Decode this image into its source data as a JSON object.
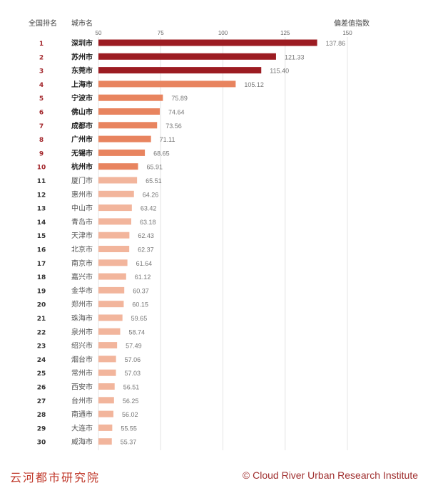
{
  "chart_data": {
    "type": "bar",
    "orientation": "horizontal",
    "rank_header": "全国排名",
    "city_header": "城市名",
    "value_header": "偏差值指数",
    "xlim": [
      50,
      150
    ],
    "xticks": [
      50,
      75,
      100,
      125,
      150
    ],
    "grid": true,
    "colors": {
      "top3": "#9c1c22",
      "top10": "#e8845f",
      "rest": "#f2b59c",
      "rank_top10": "#a3272c"
    },
    "ranks": [
      1,
      2,
      3,
      4,
      5,
      6,
      7,
      8,
      9,
      10,
      11,
      12,
      13,
      14,
      15,
      16,
      17,
      18,
      19,
      20,
      21,
      22,
      23,
      24,
      25,
      26,
      27,
      28,
      29,
      30
    ],
    "categories": [
      "深圳市",
      "苏州市",
      "东莞市",
      "上海市",
      "宁波市",
      "佛山市",
      "成都市",
      "广州市",
      "无锡市",
      "杭州市",
      "厦门市",
      "惠州市",
      "中山市",
      "青岛市",
      "天津市",
      "北京市",
      "南京市",
      "嘉兴市",
      "金华市",
      "郑州市",
      "珠海市",
      "泉州市",
      "绍兴市",
      "烟台市",
      "常州市",
      "西安市",
      "台州市",
      "南通市",
      "大连市",
      "威海市"
    ],
    "values": [
      137.86,
      121.33,
      115.4,
      105.12,
      75.89,
      74.64,
      73.56,
      71.11,
      68.65,
      65.91,
      65.51,
      64.26,
      63.42,
      63.18,
      62.43,
      62.37,
      61.64,
      61.12,
      60.37,
      60.15,
      59.65,
      58.74,
      57.49,
      57.06,
      57.03,
      56.51,
      56.25,
      56.02,
      55.55,
      55.37
    ],
    "value_labels": [
      "137.86",
      "121.33",
      "115.40",
      "105.12",
      "75.89",
      "74.64",
      "73.56",
      "71.11",
      "68.65",
      "65.91",
      "65.51",
      "64.26",
      "63.42",
      "63.18",
      "62.43",
      "62.37",
      "61.64",
      "61.12",
      "60.37",
      "60.15",
      "59.65",
      "58.74",
      "57.49",
      "57.06",
      "57.03",
      "56.51",
      "56.25",
      "56.02",
      "55.55",
      "55.37"
    ]
  },
  "footer": {
    "left": "云河都市研究院",
    "right": "© Cloud River Urban Research Institute"
  }
}
